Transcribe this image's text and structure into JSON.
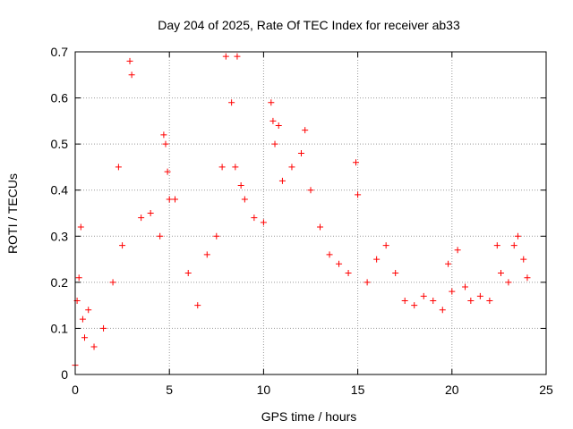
{
  "chart_data": {
    "type": "scatter",
    "title": "Day 204 of 2025, Rate Of TEC Index for receiver ab33",
    "xlabel": "GPS time / hours",
    "ylabel": "ROTI / TECUs",
    "xlim": [
      0,
      25
    ],
    "ylim": [
      0,
      0.7
    ],
    "xticks": [
      "0",
      "5",
      "10",
      "15",
      "20",
      "25"
    ],
    "yticks": [
      "0",
      "0.1",
      "0.2",
      "0.3",
      "0.4",
      "0.5",
      "0.6",
      "0.7"
    ],
    "grid": true,
    "marker": "plus",
    "color": "#ff0000",
    "series": [
      {
        "x": [
          0.0,
          0.1,
          0.2,
          0.3,
          0.4,
          0.5,
          0.7,
          1.0,
          1.5,
          2.0,
          2.3,
          2.5,
          2.9,
          3.0,
          3.5,
          4.0,
          4.5,
          4.7,
          4.8,
          4.9,
          5.0,
          5.3,
          6.0,
          6.5,
          7.0,
          7.5,
          7.8,
          8.0,
          8.3,
          8.5,
          8.6,
          8.8,
          9.0,
          9.5,
          10.0,
          10.4,
          10.5,
          10.6,
          10.8,
          11.0,
          11.5,
          12.0,
          12.2,
          12.5,
          13.0,
          13.5,
          14.0,
          14.5,
          14.9,
          15.0,
          15.5,
          16.0,
          16.5,
          17.0,
          17.5,
          18.0,
          18.5,
          19.0,
          19.5,
          19.8,
          20.0,
          20.3,
          20.7,
          21.0,
          21.5,
          22.0,
          22.4,
          22.6,
          23.0,
          23.3,
          23.5,
          23.8,
          24.0
        ],
        "y": [
          0.02,
          0.16,
          0.21,
          0.32,
          0.12,
          0.08,
          0.14,
          0.06,
          0.1,
          0.2,
          0.45,
          0.28,
          0.68,
          0.65,
          0.34,
          0.35,
          0.3,
          0.52,
          0.5,
          0.44,
          0.38,
          0.38,
          0.22,
          0.15,
          0.26,
          0.3,
          0.45,
          0.69,
          0.59,
          0.45,
          0.69,
          0.41,
          0.38,
          0.34,
          0.33,
          0.59,
          0.55,
          0.5,
          0.54,
          0.42,
          0.45,
          0.48,
          0.53,
          0.4,
          0.32,
          0.26,
          0.24,
          0.22,
          0.46,
          0.39,
          0.2,
          0.25,
          0.28,
          0.22,
          0.16,
          0.15,
          0.17,
          0.16,
          0.14,
          0.24,
          0.18,
          0.27,
          0.19,
          0.16,
          0.17,
          0.16,
          0.28,
          0.22,
          0.2,
          0.28,
          0.3,
          0.25,
          0.21
        ]
      }
    ]
  }
}
